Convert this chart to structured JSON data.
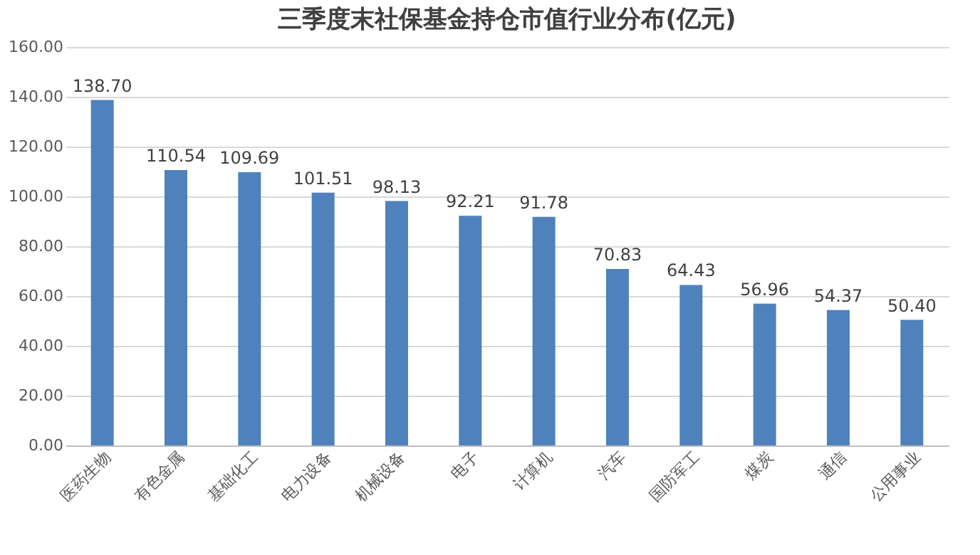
{
  "chart_data": {
    "type": "bar",
    "title": "三季度末社保基金持仓市值行业分布(亿元)",
    "categories": [
      "医药生物",
      "有色金属",
      "基础化工",
      "电力设备",
      "机械设备",
      "电子",
      "计算机",
      "汽车",
      "国防军工",
      "煤炭",
      "通信",
      "公用事业"
    ],
    "values": [
      138.7,
      110.54,
      109.69,
      101.51,
      98.13,
      92.21,
      91.78,
      70.83,
      64.43,
      56.96,
      54.37,
      50.4
    ],
    "color": "#4f81bd",
    "value_labels": [
      "138.70",
      "110.54",
      "109.69",
      "101.51",
      "98.13",
      "92.21",
      "91.78",
      "70.83",
      "64.43",
      "56.96",
      "54.37",
      "50.40"
    ],
    "ylim": [
      0,
      160
    ],
    "yticks": [
      {
        "value": 0,
        "label": "0.00"
      },
      {
        "value": 20,
        "label": "20.00"
      },
      {
        "value": 40,
        "label": "40.00"
      },
      {
        "value": 60,
        "label": "60.00"
      },
      {
        "value": 80,
        "label": "80.00"
      },
      {
        "value": 100,
        "label": "100.00"
      },
      {
        "value": 120,
        "label": "120.00"
      },
      {
        "value": 140,
        "label": "140.00"
      },
      {
        "value": 160,
        "label": "160.00"
      }
    ],
    "grid": "y"
  }
}
